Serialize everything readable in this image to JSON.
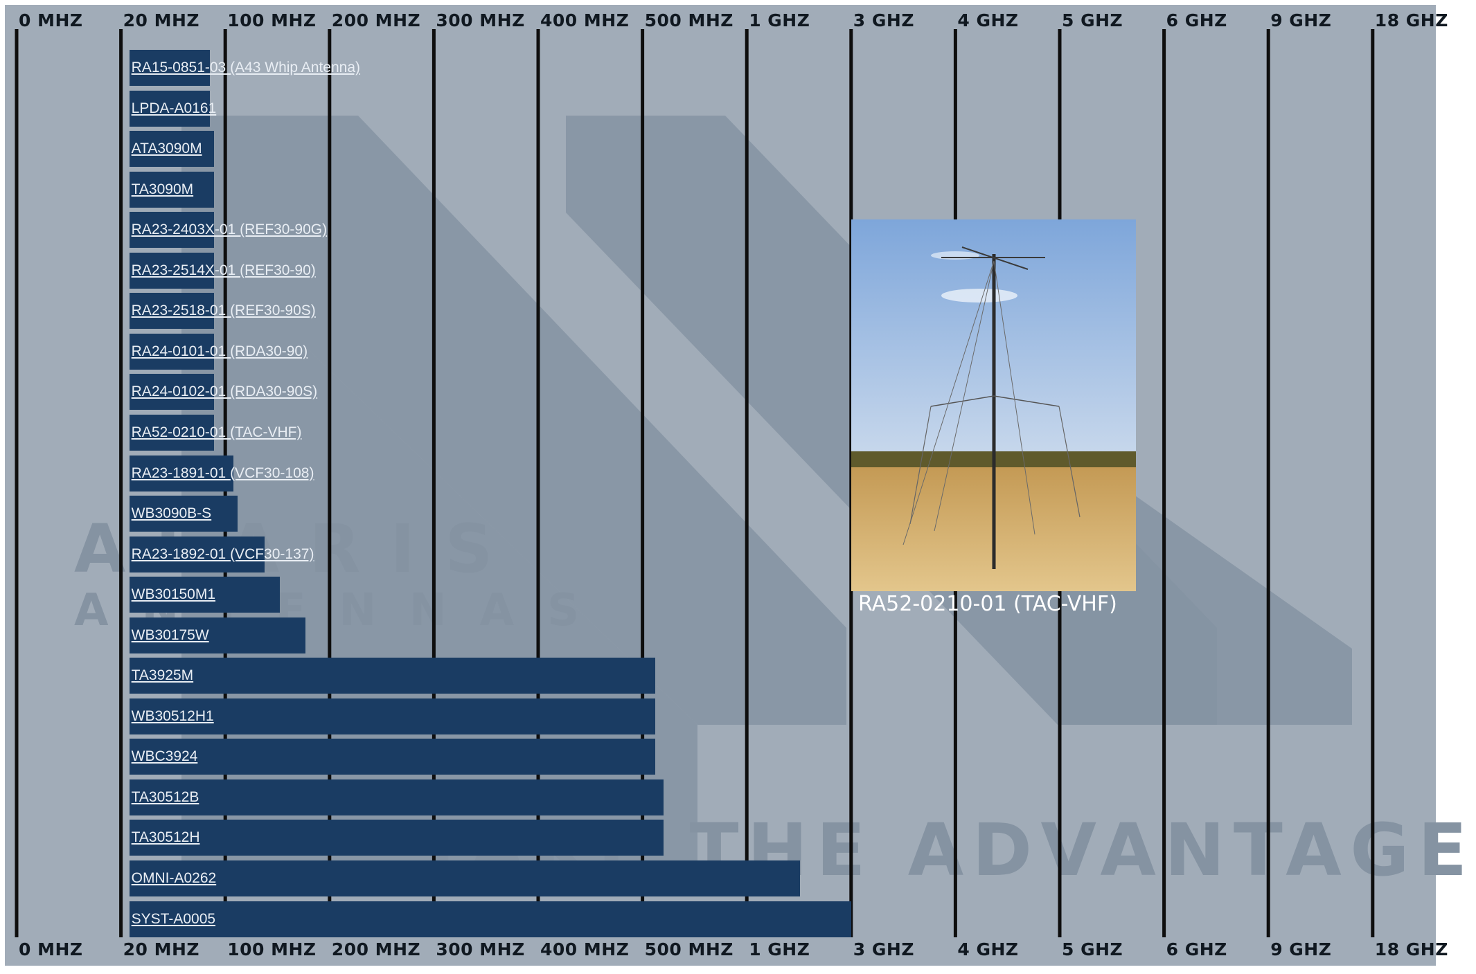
{
  "chart_data": {
    "type": "bar",
    "orientation": "horizontal",
    "x_axis_ticks": [
      "0 MHZ",
      "20 MHZ",
      "100 MHZ",
      "200 MHZ",
      "300 MHZ",
      "400 MHZ",
      "500 MHZ",
      "1 GHZ",
      "3 GHZ",
      "4 GHZ",
      "5 GHZ",
      "6 GHZ",
      "9 GHZ",
      "18 GHZ"
    ],
    "x_axis_scale": "nonlinear (equally spaced tick labels)",
    "grid": true,
    "categories": [
      "RA15-0851-03 (A43 Whip Antenna)",
      "LPDA-A0161",
      "ATA3090M",
      "TA3090M",
      "RA23-2403X-01 (REF30-90G)",
      "RA23-2514X-01 (REF30-90)",
      "RA23-2518-01 (REF30-90S)",
      "RA24-0101-01 (RDA30-90)",
      "RA24-0102-01 (RDA30-90S)",
      "RA52-0210-01 (TAC-VHF)",
      "RA23-1891-01 (VCF30-108)",
      "WB3090B-S",
      "RA23-1892-01 (VCF30-137)",
      "WB30150M1",
      "WB30175W",
      "TA3925M",
      "WB30512H1",
      "WBC3924",
      "TA30512B",
      "TA30512H",
      "OMNI-A0262",
      "SYST-A0005"
    ],
    "ranges_in_tick_units": [
      [
        1.08,
        1.85
      ],
      [
        1.08,
        1.85
      ],
      [
        1.08,
        1.89
      ],
      [
        1.08,
        1.89
      ],
      [
        1.08,
        1.89
      ],
      [
        1.08,
        1.89
      ],
      [
        1.08,
        1.89
      ],
      [
        1.08,
        1.89
      ],
      [
        1.08,
        1.89
      ],
      [
        1.08,
        1.89
      ],
      [
        1.08,
        2.08
      ],
      [
        1.08,
        2.12
      ],
      [
        1.08,
        2.38
      ],
      [
        1.08,
        2.52
      ],
      [
        1.08,
        2.77
      ],
      [
        1.08,
        6.12
      ],
      [
        1.08,
        6.12
      ],
      [
        1.08,
        6.12
      ],
      [
        1.08,
        6.2
      ],
      [
        1.08,
        6.2
      ],
      [
        1.08,
        7.51
      ],
      [
        1.08,
        8.0
      ]
    ],
    "bar_color": "#1a3c63"
  },
  "watermark": {
    "line1": "ALARIS",
    "line2": "ANTENNAS",
    "tagline": "TAKE THE ADVANTAGE"
  },
  "photo": {
    "caption": "RA52-0210-01 (TAC-VHF)",
    "subject": "tactical VHF antenna mast with guy wires in a dry field"
  },
  "colors": {
    "panel_background": "#a1acb8",
    "watermark": "#8593a2",
    "grid_line": "#0e0e0e",
    "label_text": "#e9eef4"
  }
}
